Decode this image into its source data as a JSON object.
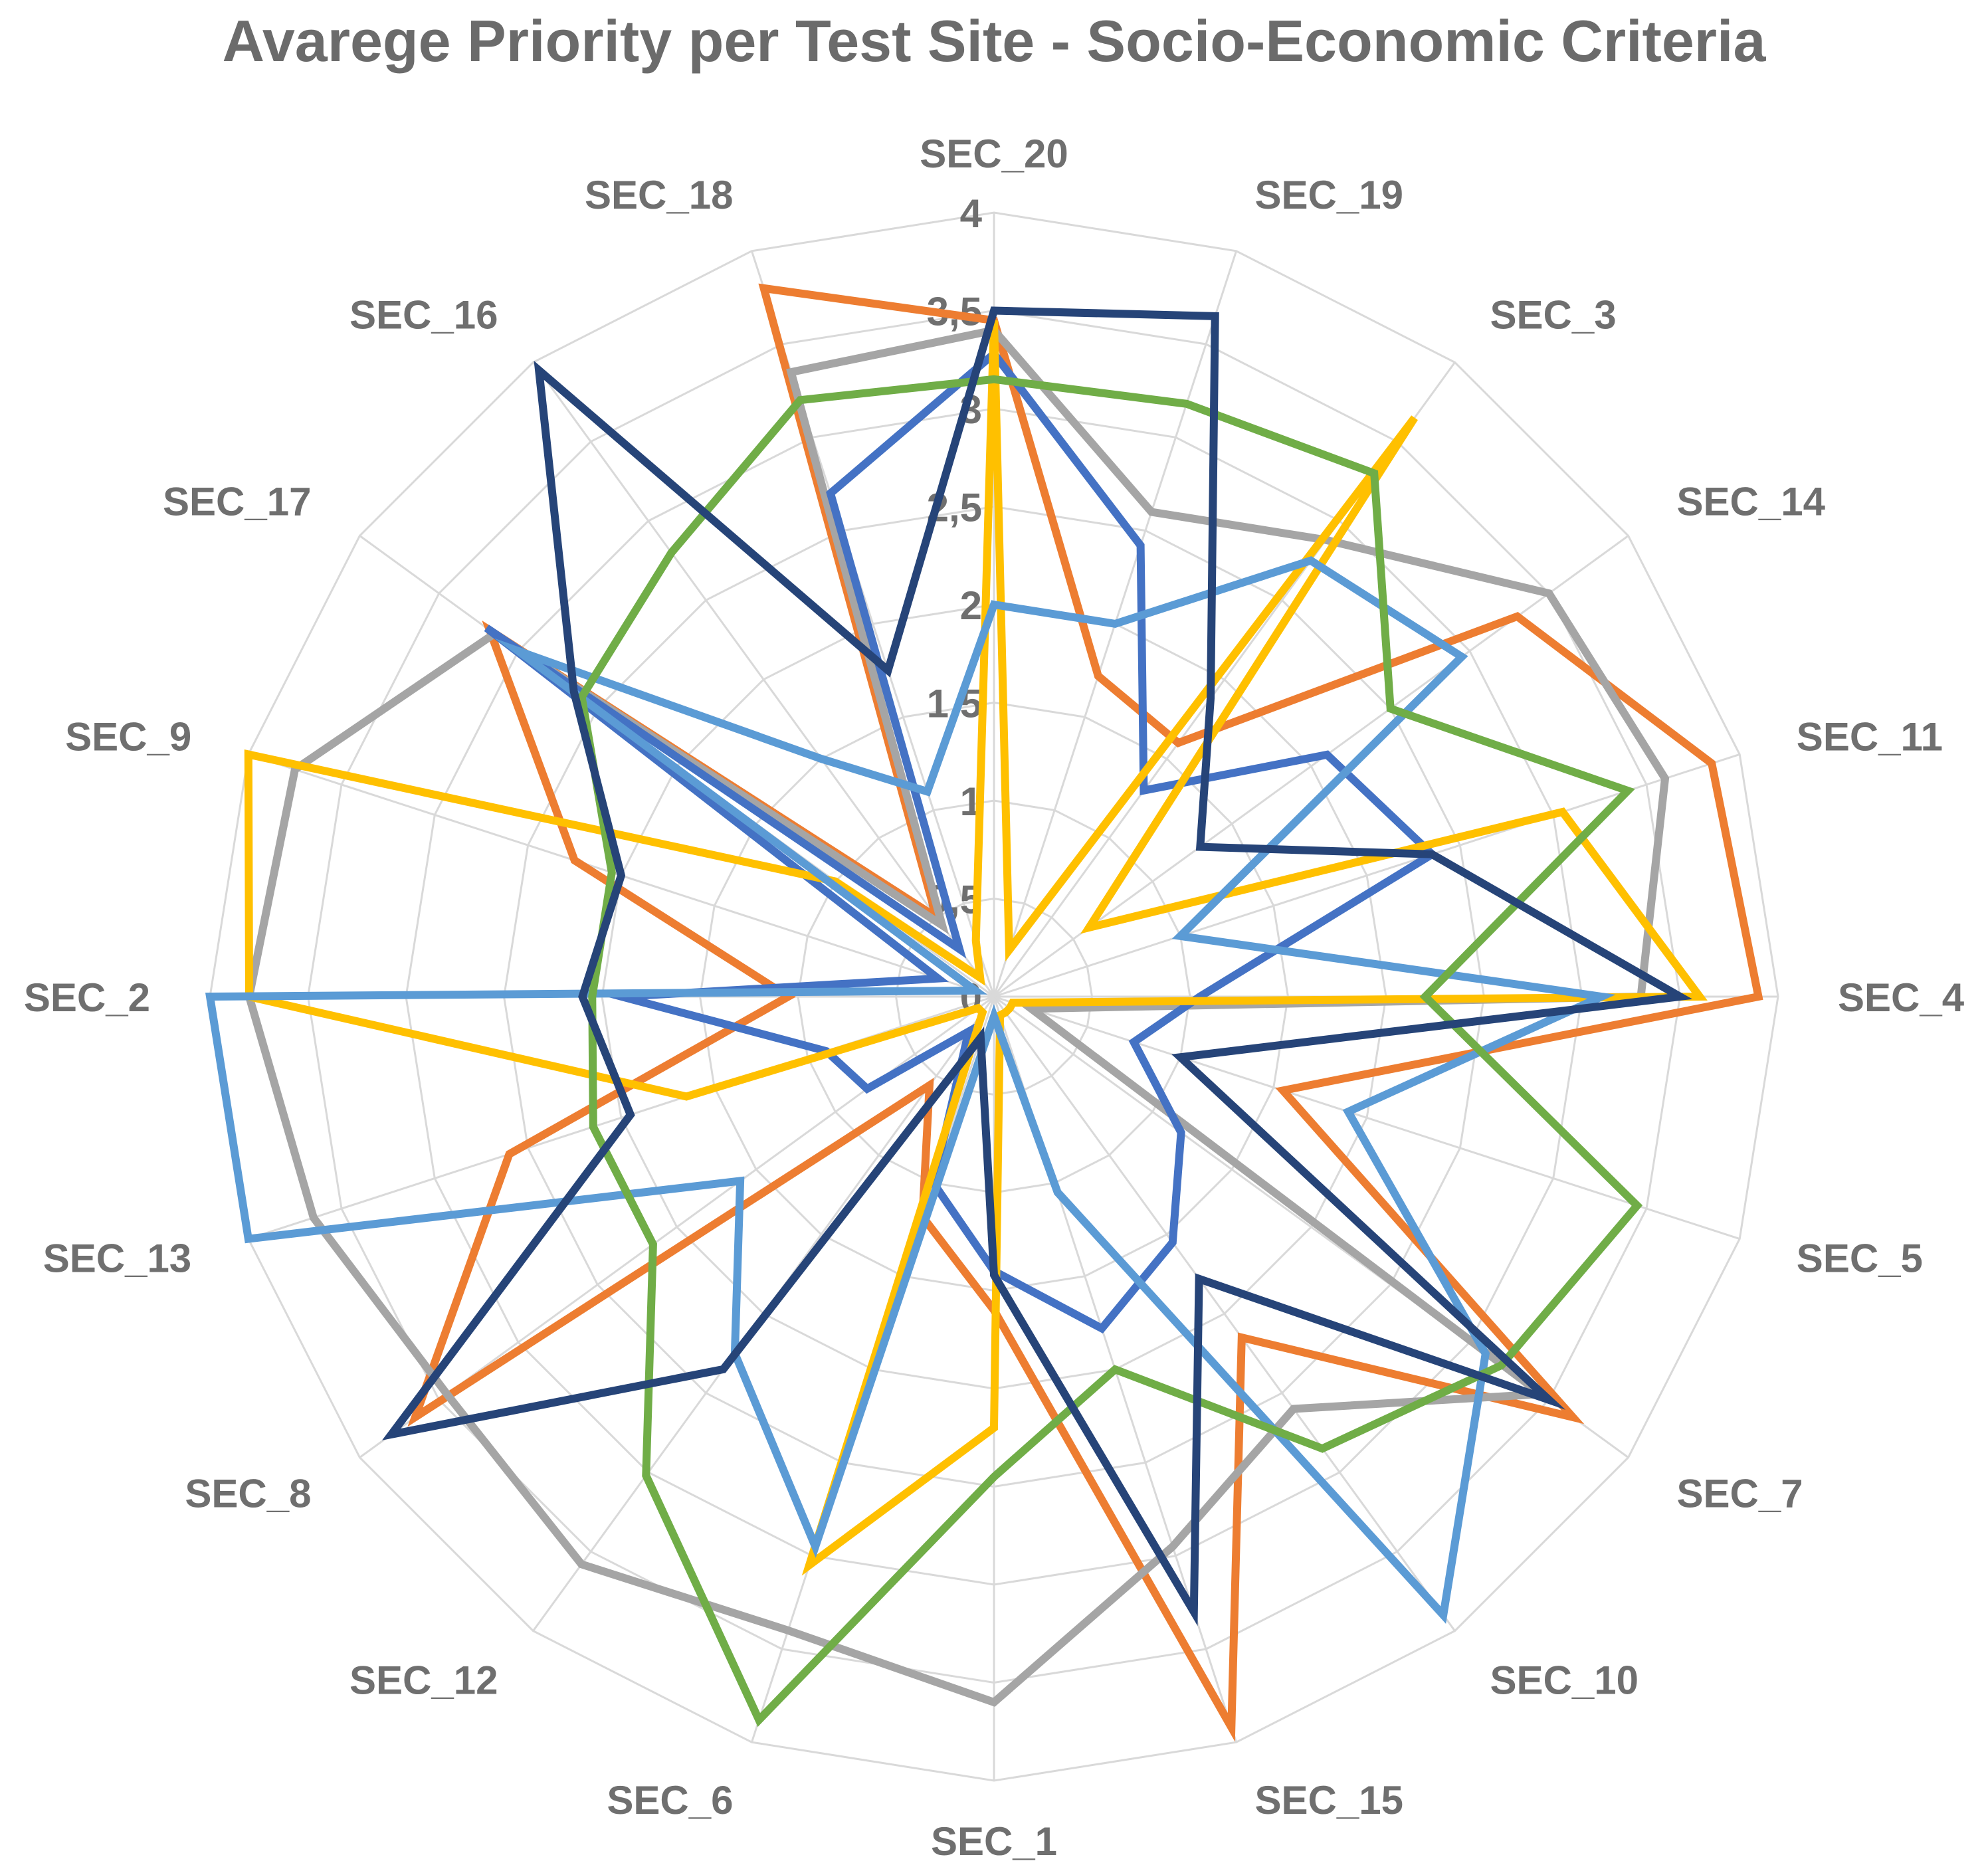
{
  "chart_data": {
    "type": "radar",
    "title": "Avarege Priority per Test Site - Socio-Economic Criteria",
    "categories": [
      "SEC_20",
      "SEC_19",
      "SEC_3",
      "SEC_14",
      "SEC_11",
      "SEC_4",
      "SEC_5",
      "SEC_7",
      "SEC_10",
      "SEC_15",
      "SEC_1",
      "SEC_6",
      "SEC_12",
      "SEC_8",
      "SEC_13",
      "SEC_2",
      "SEC_9",
      "SEC_17",
      "SEC_16",
      "SEC_18"
    ],
    "tick_labels": [
      "0",
      "0,5",
      "1",
      "1,5",
      "2",
      "2,5",
      "3",
      "3,5",
      "4"
    ],
    "rlim": [
      0,
      4
    ],
    "grid": true,
    "legend": "none",
    "series": [
      {
        "color": "#ed7d31",
        "values": [
          3.45,
          1.72,
          1.6,
          3.3,
          3.85,
          3.9,
          1.55,
          3.65,
          2.15,
          3.92,
          1.6,
          1.18,
          0.56,
          3.65,
          2.6,
          1.05,
          2.25,
          3.18,
          0.5,
          3.8
        ]
      },
      {
        "color": "#a5a5a5",
        "values": [
          3.4,
          2.6,
          2.88,
          3.5,
          3.6,
          3.3,
          0.2,
          3.45,
          2.6,
          2.95,
          3.6,
          3.4,
          3.58,
          3.45,
          3.65,
          3.8,
          3.75,
          3.15,
          0.45,
          3.35
        ]
      },
      {
        "color": "#4472c4",
        "values": [
          3.28,
          2.42,
          1.3,
          2.1,
          2.35,
          1.05,
          0.75,
          1.18,
          1.55,
          1.78,
          1.4,
          1.0,
          0.22,
          0.8,
          0.9,
          1.9,
          0.3,
          3.2,
          0.3,
          2.7
        ]
      },
      {
        "color": "#ffc000",
        "values": [
          3.45,
          0.25,
          3.65,
          0.6,
          3.05,
          3.6,
          0.1,
          0.1,
          0.1,
          0.1,
          2.2,
          3.05,
          0.1,
          0.1,
          1.65,
          3.8,
          4.0,
          1.0,
          0.12,
          0.3
        ]
      },
      {
        "color": "#5b9bd5",
        "values": [
          2.0,
          2.0,
          2.75,
          2.95,
          1.0,
          3.1,
          1.9,
          3.1,
          3.9,
          1.05,
          0.1,
          2.95,
          2.25,
          1.6,
          4.0,
          4.0,
          0.1,
          3.0,
          1.5,
          1.1
        ]
      },
      {
        "color": "#70ad47",
        "values": [
          3.15,
          3.18,
          3.3,
          2.5,
          3.4,
          2.2,
          3.45,
          3.2,
          2.85,
          2.0,
          2.45,
          3.88,
          3.02,
          2.15,
          2.15,
          2.05,
          2.05,
          2.6,
          2.8,
          3.2
        ]
      },
      {
        "color": "#264478",
        "values": [
          3.5,
          3.65,
          1.88,
          1.3,
          2.35,
          3.5,
          1.0,
          3.5,
          1.78,
          3.3,
          1.42,
          0.22,
          2.35,
          3.8,
          1.95,
          2.1,
          2.0,
          2.65,
          3.95,
          1.75
        ]
      }
    ]
  }
}
